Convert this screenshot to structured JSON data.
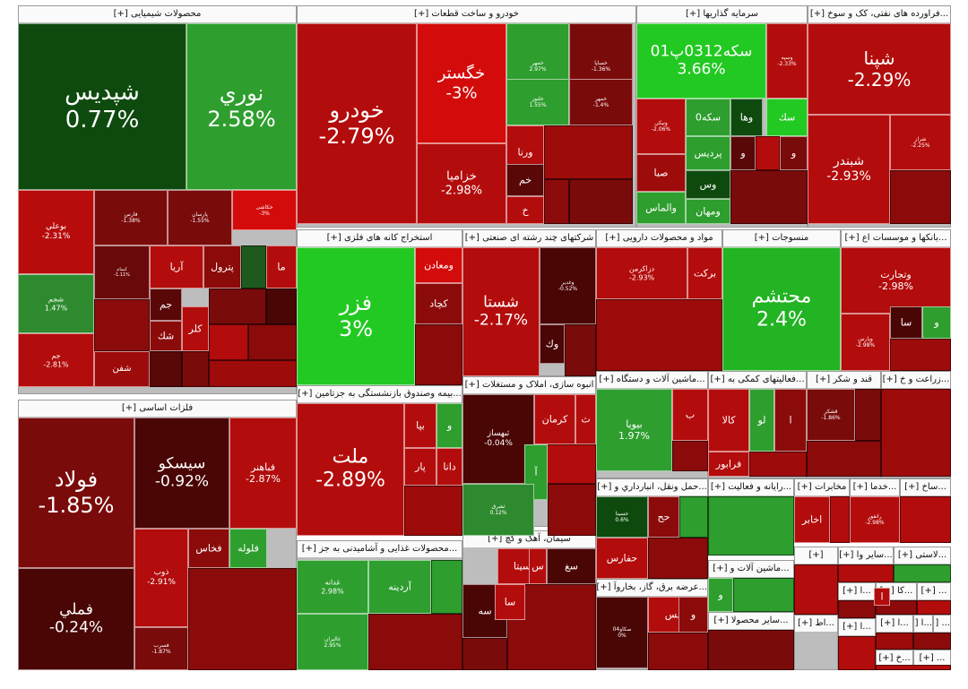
{
  "colors": {
    "pos_strong": "#22b422",
    "pos": "#2e9e2e",
    "dark_green": "#0e4a0e",
    "red_bright": "#d40b0b",
    "red": "#b30c0c",
    "dark_red": "#7a0b0b",
    "darker_red": "#4a0505"
  },
  "sectors": [
    {
      "label": "محصولات شیمیایی [+]"
    },
    {
      "label": "خودرو و ساخت قطعات [+]"
    },
    {
      "label": "سرمایه گذاریها [+]"
    },
    {
      "label": "...فراورده های نفتی، کک و سوخ [+]"
    },
    {
      "label": "استخراج کانه های فلزی [+]"
    },
    {
      "label": "شرکتهای چند رشته ای صنعتی [+]"
    },
    {
      "label": "مواد و محصولات دارویی [+]"
    },
    {
      "label": "منسوجات [+]"
    },
    {
      "label": "...بانکها و موسسات اع [+]"
    },
    {
      "label": "فلزات اساسی [+]"
    },
    {
      "label": "...بیمه وصندوق بازنشستگی به جزتامین [+]"
    },
    {
      "label": "انبوه سازی، املاک و مستغلات [+]"
    },
    {
      "label": "...ماشین آلات و دستگاه [+]"
    },
    {
      "label": "...فعالیتهای کمکی به [+]"
    },
    {
      "label": "قند و شکر [+]"
    },
    {
      "label": "...زراعت و خ [+]"
    },
    {
      "label": "...حمل ونقل، انبارداري و [+]"
    },
    {
      "label": "...رایانه و فعالیت [+]"
    },
    {
      "label": "مخابرات [+]"
    },
    {
      "label": "...خدما [+]"
    },
    {
      "label": "...ساخ [+]"
    },
    {
      "label": "...محصولات غذایی و آشامیدنی به جز [+]"
    },
    {
      "label": "سیمان، آهک و گچ [+]"
    },
    {
      "label": "...عرضه برق، گاز، بخاروآ [+]"
    },
    {
      "label": "...ماشین آلات و [+]"
    },
    {
      "label": "...سایر محصولا [+]"
    },
    {
      "label": "...سایر وا [+]"
    },
    {
      "label": "...لاستی [+]"
    },
    {
      "label": "[+]"
    },
    {
      "label": "...ا [+]"
    },
    {
      "label": "...اط [+]"
    },
    {
      "label": "...كا [+]"
    },
    {
      "label": "... [+]"
    },
    {
      "label": "...خ [+]"
    },
    {
      "label": "...ا [+]"
    },
    {
      "label": "...ا [+]"
    },
    {
      "label": "...ا [+]"
    },
    {
      "label": "... [+]"
    },
    {
      "label": "... [+]"
    }
  ],
  "tiles": [
    {
      "name": "شپدیس",
      "change": "0.77%",
      "color": "#0e4a0e"
    },
    {
      "name": "نوري",
      "change": "2.58%",
      "color": "#2e9e2e"
    },
    {
      "name": "بوعلي",
      "change": "-2.31%",
      "color": "#b80c0c"
    },
    {
      "name": "فارس",
      "change": "-1.38%",
      "color": "#7a0b0b"
    },
    {
      "name": "پارسان",
      "change": "-1.55%",
      "color": "#7a0b0b"
    },
    {
      "name": "خکاشی",
      "change": "-3%",
      "color": "#d40b0b"
    },
    {
      "name": "شجم",
      "change": "1.47%",
      "color": "#2e8a2e"
    },
    {
      "name": "كيمام",
      "change": "-1.11%",
      "color": "#6a0909"
    },
    {
      "name": "آريا",
      "change": "",
      "color": "#b30c0c"
    },
    {
      "name": "پترول",
      "change": "",
      "color": "#8b0b0b"
    },
    {
      "name": "ما",
      "change": "",
      "color": "#b30c0c"
    },
    {
      "name": "جم",
      "change": "-2.81%",
      "color": "#b30c0c"
    },
    {
      "name": "كلر",
      "change": "",
      "color": "#b30c0c"
    },
    {
      "name": "شفن",
      "change": "",
      "color": "#9e0b0b"
    },
    {
      "name": "جم",
      "change": "",
      "color": "#5a0707"
    },
    {
      "name": "شك",
      "change": "",
      "color": "#8b0b0b"
    },
    {
      "name": "خودرو",
      "change": "-2.79%",
      "color": "#b30c0c"
    },
    {
      "name": "خگستر",
      "change": "-3%",
      "color": "#d40b0b"
    },
    {
      "name": "خزامیا",
      "change": "-2.98%",
      "color": "#b30c0c"
    },
    {
      "name": "خمهر",
      "change": "2.97%",
      "color": "#2e9e2e"
    },
    {
      "name": "خساپا",
      "change": "-1.36%",
      "color": "#7a0b0b"
    },
    {
      "name": "خلنور",
      "change": "1.55%",
      "color": "#2e9e2e"
    },
    {
      "name": "خمهر",
      "change": "-1.4%",
      "color": "#7a0b0b"
    },
    {
      "name": "ورنا",
      "change": "",
      "color": "#b30c0c"
    },
    {
      "name": "خم",
      "change": "",
      "color": "#5a0707"
    },
    {
      "name": "خ",
      "change": "",
      "color": "#b30c0c"
    },
    {
      "name": "سكه0312پ01",
      "change": "3.66%",
      "color": "#22c922"
    },
    {
      "name": "وسپه",
      "change": "-2.33%",
      "color": "#b30c0c"
    },
    {
      "name": "ونيكي",
      "change": "-2.06%",
      "color": "#b30c0c"
    },
    {
      "name": "سكه0",
      "change": "",
      "color": "#2e9e2e"
    },
    {
      "name": "وها",
      "change": "",
      "color": "#0e4a0e"
    },
    {
      "name": "سك",
      "change": "",
      "color": "#22c922"
    },
    {
      "name": "پرديس",
      "change": "",
      "color": "#2e9e2e"
    },
    {
      "name": "و",
      "change": "",
      "color": "#5a0707"
    },
    {
      "name": "و",
      "change": "",
      "color": "#7a0b0b"
    },
    {
      "name": "صبا",
      "change": "",
      "color": "#9e0b0b"
    },
    {
      "name": "وس",
      "change": "",
      "color": "#0e4a0e"
    },
    {
      "name": "والماس",
      "change": "",
      "color": "#2e9e2e"
    },
    {
      "name": "ومهان",
      "change": "",
      "color": "#2e9e2e"
    },
    {
      "name": "شپنا",
      "change": "-2.29%",
      "color": "#b30c0c"
    },
    {
      "name": "شبندر",
      "change": "-2.93%",
      "color": "#b30c0c"
    },
    {
      "name": "شراز",
      "change": "-2.25%",
      "color": "#b30c0c"
    },
    {
      "name": "فزر",
      "change": "3%",
      "color": "#22c922"
    },
    {
      "name": "ومعادن",
      "change": "",
      "color": "#d40b0b"
    },
    {
      "name": "کچاد",
      "change": "",
      "color": "#8b0b0b"
    },
    {
      "name": "شستا",
      "change": "-2.17%",
      "color": "#b30c0c"
    },
    {
      "name": "وغدير",
      "change": "-0.52%",
      "color": "#4a0505"
    },
    {
      "name": "وك",
      "change": "",
      "color": "#4a0505"
    },
    {
      "name": "دزاكرمن",
      "change": "-2.93%",
      "color": "#b30c0c"
    },
    {
      "name": "بركت",
      "change": "",
      "color": "#b30c0c"
    },
    {
      "name": "محتشم",
      "change": "2.4%",
      "color": "#22b422"
    },
    {
      "name": "وتجارت",
      "change": "-2.98%",
      "color": "#b30c0c"
    },
    {
      "name": "وپارس",
      "change": "-2.98%",
      "color": "#b30c0c"
    },
    {
      "name": "سا",
      "change": "",
      "color": "#4a0505"
    },
    {
      "name": "و",
      "change": "",
      "color": "#2e9e2e"
    },
    {
      "name": "فولاد",
      "change": "-1.85%",
      "color": "#7a0b0b"
    },
    {
      "name": "سيسكو",
      "change": "-0.92%",
      "color": "#4a0505"
    },
    {
      "name": "فباهنر",
      "change": "-2.87%",
      "color": "#b30c0c"
    },
    {
      "name": "فملي",
      "change": "-0.24%",
      "color": "#4a0505"
    },
    {
      "name": "ذوب",
      "change": "-2.91%",
      "color": "#b30c0c"
    },
    {
      "name": "فخاس",
      "change": "",
      "color": "#8b0b0b"
    },
    {
      "name": "فلوله",
      "change": "",
      "color": "#2e9e2e"
    },
    {
      "name": "فسرب",
      "change": "-1.87%",
      "color": "#7a0b0b"
    },
    {
      "name": "ملت",
      "change": "-2.89%",
      "color": "#b30c0c"
    },
    {
      "name": "بپا",
      "change": "",
      "color": "#b30c0c"
    },
    {
      "name": "و",
      "change": "",
      "color": "#2e9e2e"
    },
    {
      "name": "پار",
      "change": "",
      "color": "#b30c0c"
    },
    {
      "name": "دانا",
      "change": "",
      "color": "#b30c0c"
    },
    {
      "name": "ثبهساز",
      "change": "-0.04%",
      "color": "#4a0505"
    },
    {
      "name": "كرمان",
      "change": "",
      "color": "#b30c0c"
    },
    {
      "name": "ث",
      "change": "",
      "color": "#b30c0c"
    },
    {
      "name": "آ",
      "change": "",
      "color": "#2e9e2e"
    },
    {
      "name": "ثشرق",
      "change": "0.12%",
      "color": "#2e8a2e"
    },
    {
      "name": "بيويا",
      "change": "1.97%",
      "color": "#2e9e2e"
    },
    {
      "name": "ب",
      "change": "",
      "color": "#b30c0c"
    },
    {
      "name": "كالا",
      "change": "",
      "color": "#b30c0c"
    },
    {
      "name": "لو",
      "change": "",
      "color": "#2e9e2e"
    },
    {
      "name": "ا",
      "change": "",
      "color": "#8b0b0b"
    },
    {
      "name": "فرابور",
      "change": "",
      "color": "#b30c0c"
    },
    {
      "name": "قشكر",
      "change": "-1.86%",
      "color": "#7a0b0b"
    },
    {
      "name": "حفارس",
      "change": "",
      "color": "#b30c0c"
    },
    {
      "name": "حح",
      "change": "",
      "color": "#8b0b0b"
    },
    {
      "name": "حسينا",
      "change": "0.6%",
      "color": "#0e4a0e"
    },
    {
      "name": "اخابر",
      "change": "",
      "color": "#b30c0c"
    },
    {
      "name": "رانفور",
      "change": "-2.98%",
      "color": "#b30c0c"
    },
    {
      "name": "غدانه",
      "change": "2.98%",
      "color": "#2e9e2e"
    },
    {
      "name": "آردينه",
      "change": "",
      "color": "#2e9e2e"
    },
    {
      "name": "غاليران",
      "change": "2.95%",
      "color": "#2e9e2e"
    },
    {
      "name": "سيتا",
      "change": "",
      "color": "#b30c0c"
    },
    {
      "name": "سغ",
      "change": "",
      "color": "#4a0505"
    },
    {
      "name": "س",
      "change": "",
      "color": "#b30c0c"
    },
    {
      "name": "سه",
      "change": "",
      "color": "#4a0505"
    },
    {
      "name": "سا",
      "change": "",
      "color": "#b30c0c"
    },
    {
      "name": "شمس",
      "change": "",
      "color": "#b30c0c"
    },
    {
      "name": "و",
      "change": "",
      "color": "#8b0b0b"
    },
    {
      "name": "صكاو04",
      "change": "0%",
      "color": "#4a0505"
    },
    {
      "name": "و",
      "change": "",
      "color": "#2e9e2e"
    },
    {
      "name": "ا",
      "change": "",
      "color": "#b30c0c"
    }
  ]
}
